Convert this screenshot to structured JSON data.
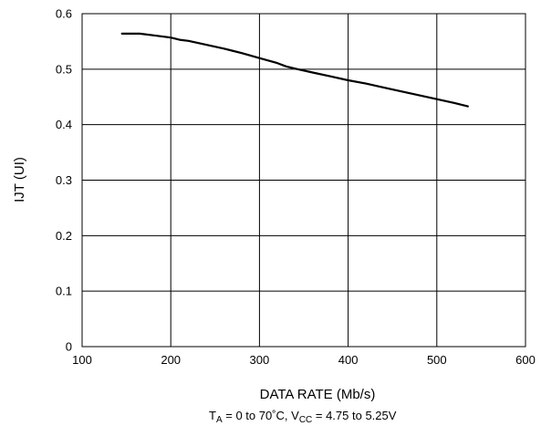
{
  "chart_data": {
    "type": "line",
    "xlabel": "DATA RATE (Mb/s)",
    "ylabel": "IJT (UI)",
    "xlim": [
      100,
      600
    ],
    "ylim": [
      0,
      0.6
    ],
    "x_ticks": [
      100,
      200,
      300,
      400,
      500,
      600
    ],
    "y_ticks": [
      0,
      0.1,
      0.2,
      0.3,
      0.4,
      0.5,
      0.6
    ],
    "x_tick_labels": [
      "100",
      "200",
      "300",
      "400",
      "500",
      "600"
    ],
    "y_tick_labels": [
      "0",
      "0.1",
      "0.2",
      "0.3",
      "0.4",
      "0.5",
      "0.6"
    ],
    "grid": true,
    "series": [
      {
        "color": "#000000",
        "x": [
          145,
          165,
          180,
          200,
          210,
          220,
          240,
          260,
          280,
          300,
          320,
          330,
          340,
          360,
          380,
          400,
          420,
          440,
          460,
          480,
          500,
          520,
          535
        ],
        "y": [
          0.564,
          0.564,
          0.561,
          0.557,
          0.553,
          0.551,
          0.544,
          0.537,
          0.529,
          0.52,
          0.511,
          0.505,
          0.501,
          0.494,
          0.487,
          0.48,
          0.474,
          0.467,
          0.46,
          0.453,
          0.446,
          0.439,
          0.433
        ]
      }
    ],
    "conditions": {
      "ta_sym": "T",
      "ta_sub": "A",
      "ta_val": " = 0 to 70˚C, ",
      "vcc_sym": "V",
      "vcc_sub": "CC",
      "vcc_val": " = 4.75 to 5.25V"
    }
  }
}
